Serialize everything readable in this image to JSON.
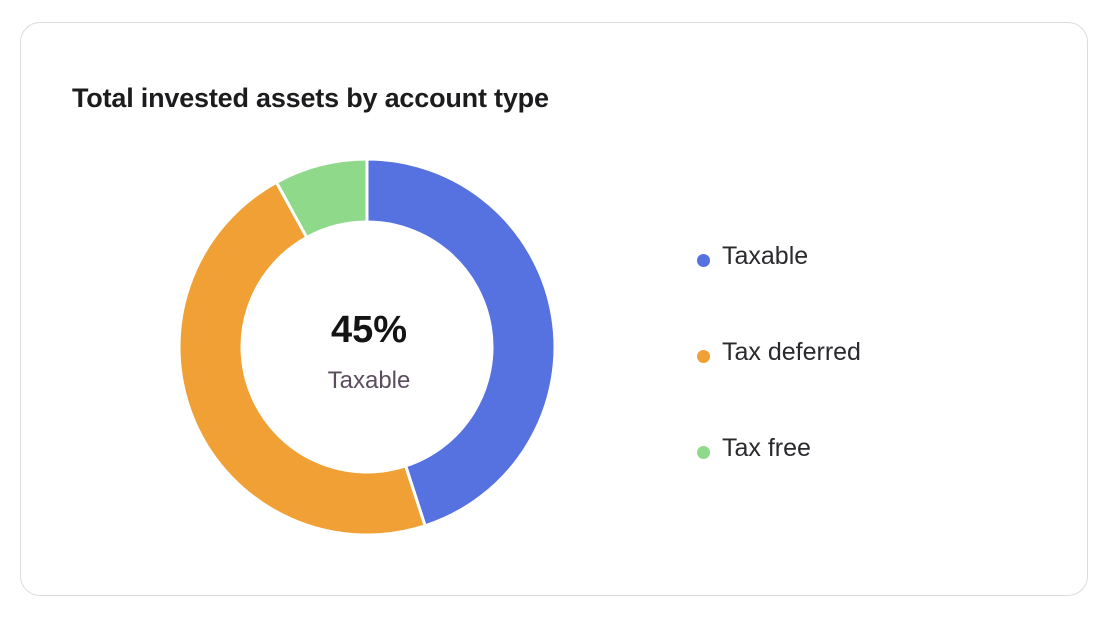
{
  "card": {
    "title": "Total invested assets by account type"
  },
  "center": {
    "value": "45%",
    "label": "Taxable"
  },
  "chart_data": {
    "type": "pie",
    "title": "Total invested assets by account type",
    "donut": true,
    "categories": [
      "Taxable",
      "Tax deferred",
      "Tax free"
    ],
    "values": [
      45,
      47,
      8
    ],
    "colors": [
      "#5672e0",
      "#f0a035",
      "#8fd98b"
    ],
    "legend_position": "right"
  },
  "legend": [
    {
      "label": "Taxable",
      "color": "#5672e0"
    },
    {
      "label": "Tax deferred",
      "color": "#f0a035"
    },
    {
      "label": "Tax free",
      "color": "#8fd98b"
    }
  ]
}
